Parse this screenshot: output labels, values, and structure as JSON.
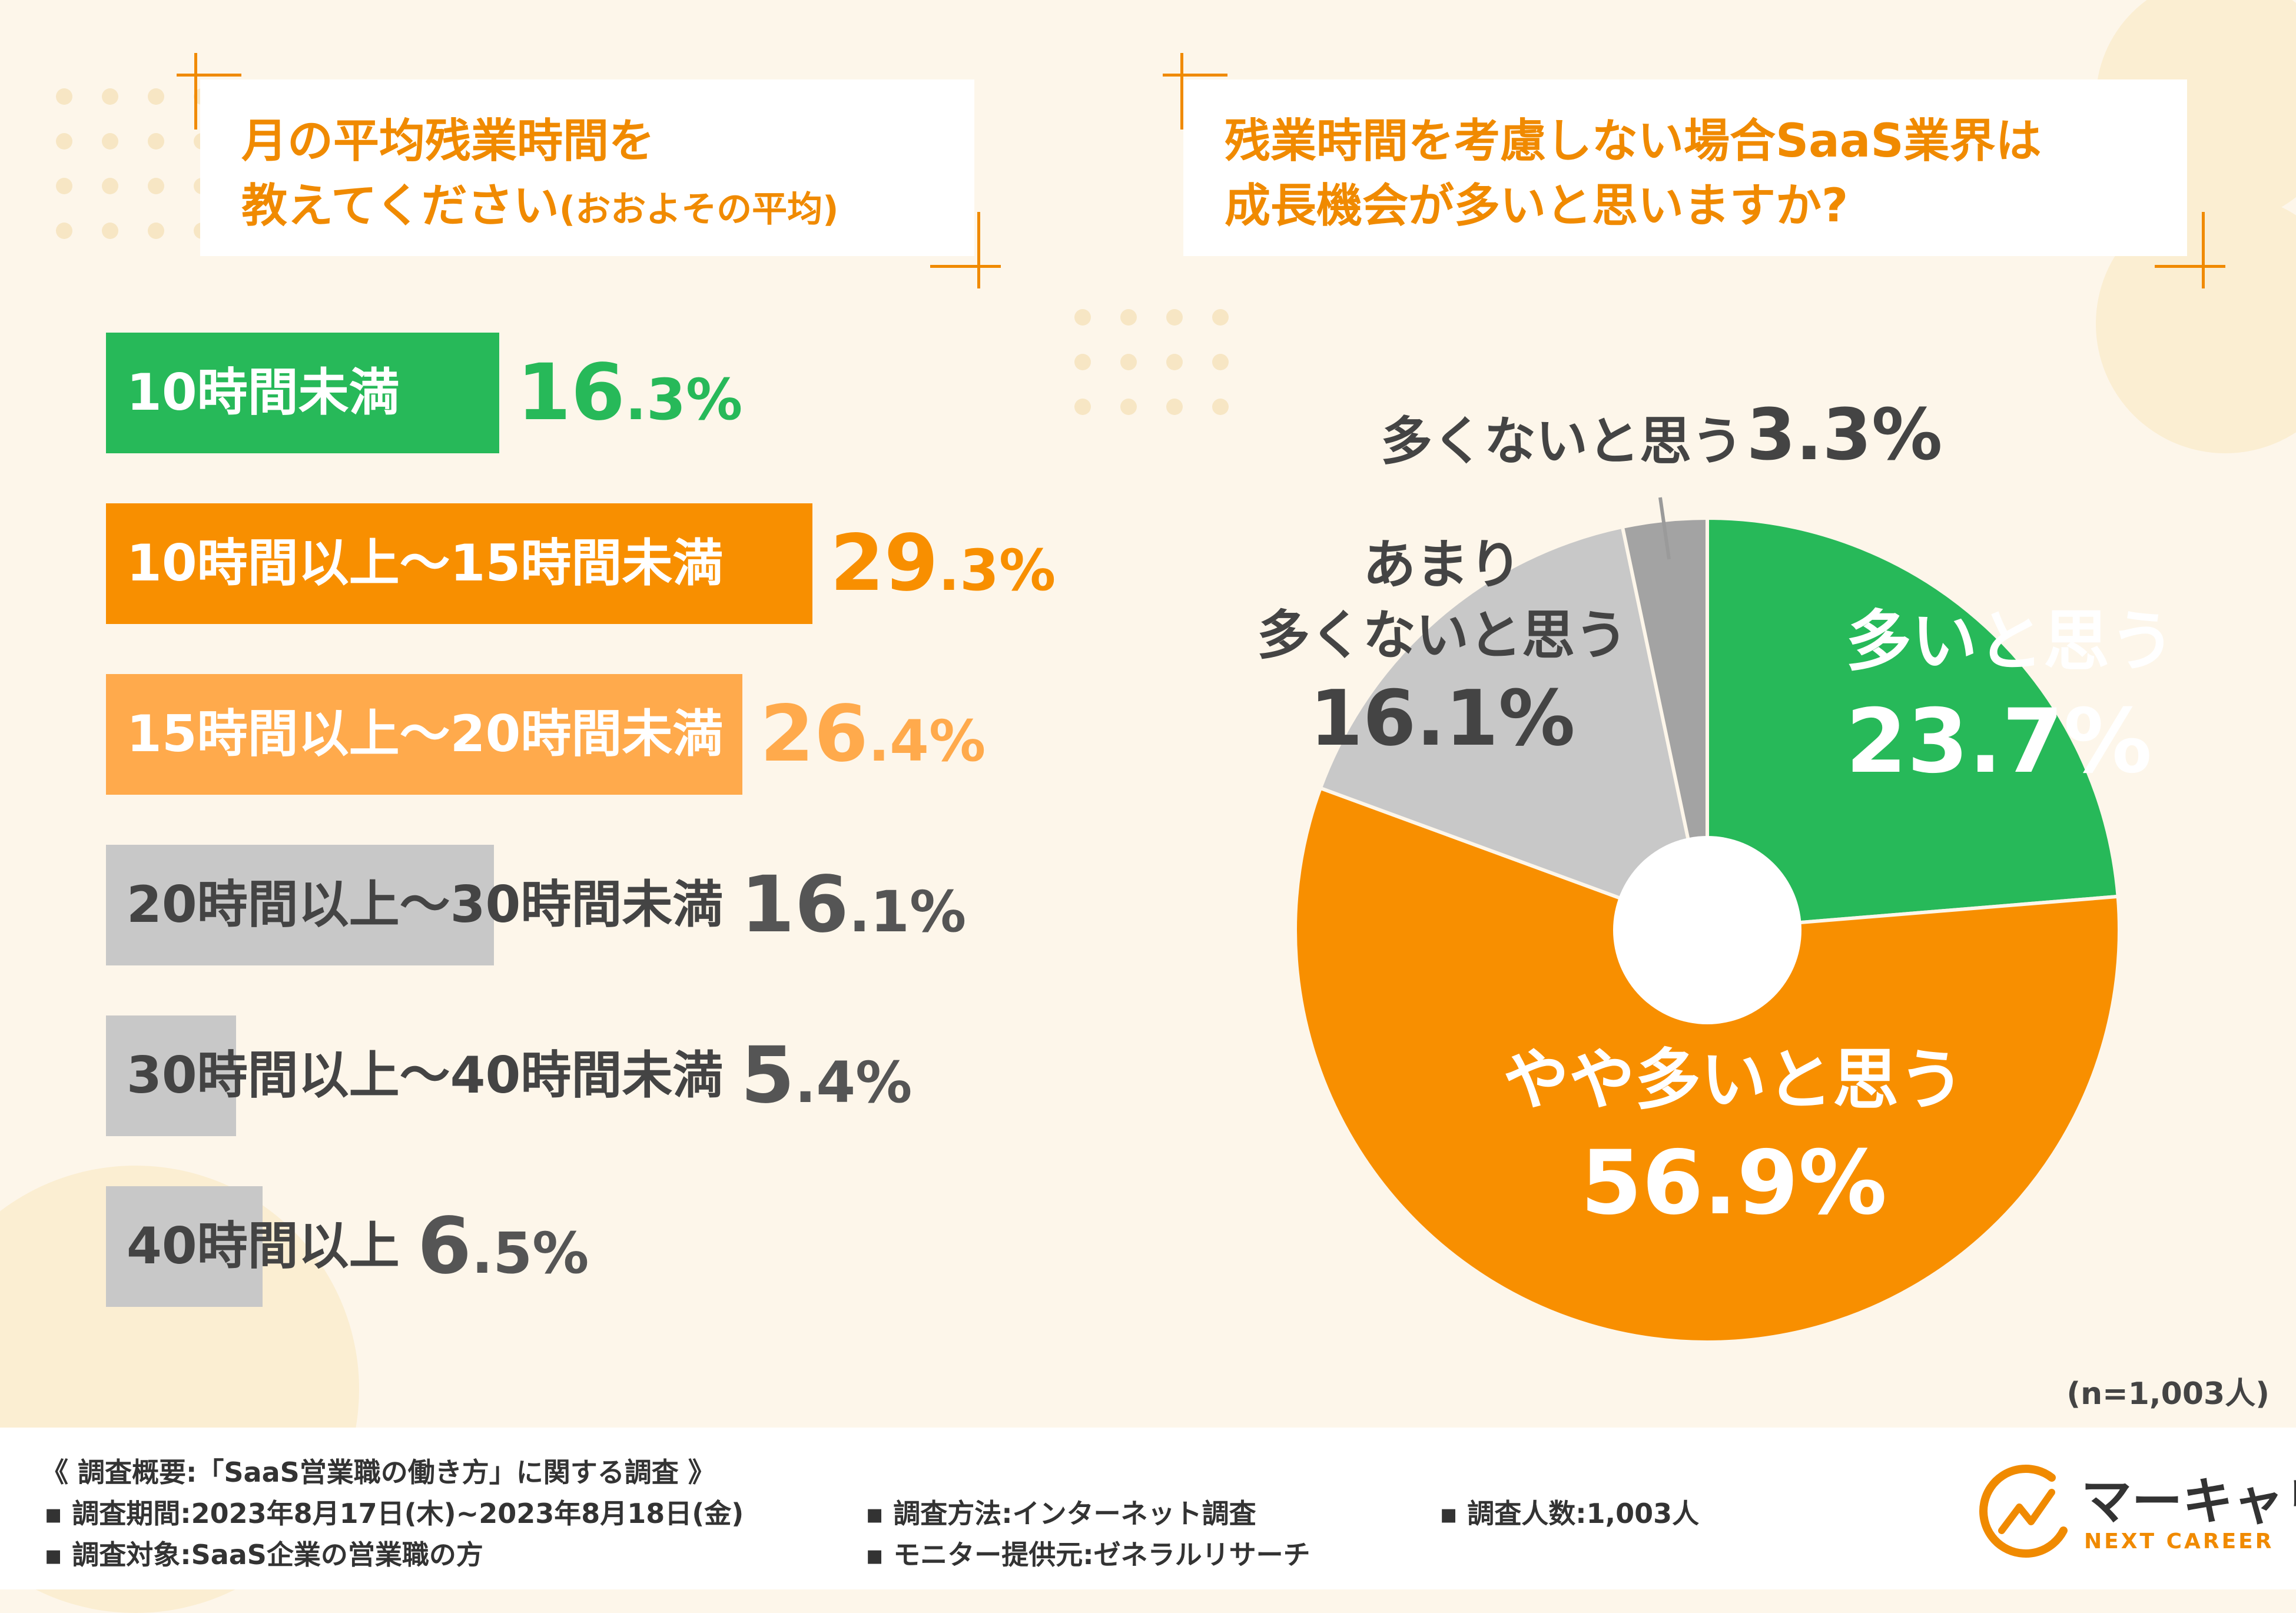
{
  "left_question": {
    "line1": "月の平均残業時間を",
    "line2_main": "教えてください",
    "line2_note": "(おおよその平均)"
  },
  "right_question": {
    "line1": "残業時間を考慮しない場合SaaS業界は",
    "line2": "成長機会が多いと思いますか?"
  },
  "chart_data": [
    {
      "type": "bar",
      "orientation": "horizontal",
      "title": "月の平均残業時間を教えてください(おおよその平均)",
      "categories": [
        "10時間未満",
        "10時間以上〜15時間未満",
        "15時間以上〜20時間未満",
        "20時間以上〜30時間未満",
        "30時間以上〜40時間未満",
        "40時間以上"
      ],
      "values": [
        16.3,
        29.3,
        26.4,
        16.1,
        5.4,
        6.5
      ],
      "value_big": [
        "16",
        "29",
        "26",
        "16",
        "5",
        "6"
      ],
      "value_small": [
        ".3%",
        ".3%",
        ".4%",
        ".1%",
        ".4%",
        ".5%"
      ],
      "colors": [
        "#27b959",
        "#f88f00",
        "#ffaa4c",
        "#c8c8c8",
        "#c8c8c8",
        "#c8c8c8"
      ],
      "label_colors": [
        "#ffffff",
        "#ffffff",
        "#ffffff",
        "#444444",
        "#444444",
        "#444444"
      ],
      "value_colors": [
        "#27b959",
        "#f88f00",
        "#ffaa4c",
        "#555555",
        "#555555",
        "#555555"
      ]
    },
    {
      "type": "pie",
      "style": "donut",
      "title": "残業時間を考慮しない場合SaaS業界は成長機会が多いと思いますか?",
      "slices": [
        {
          "label": "多いと思う",
          "value": 23.7,
          "value_text": "23.7%",
          "color": "#27b959"
        },
        {
          "label": "やや多いと思う",
          "value": 56.9,
          "value_text": "56.9%",
          "color": "#f88f00"
        },
        {
          "label": "あまり多くないと思う",
          "label_line1": "あまり",
          "label_line2": "多くないと思う",
          "value": 16.1,
          "value_text": "16.1%",
          "color": "#c8c8c8"
        },
        {
          "label": "多くないと思う",
          "value": 3.3,
          "value_text": "3.3%",
          "color": "#a3a3a3"
        }
      ]
    }
  ],
  "sample_size": "(n=1,003人)",
  "footer": {
    "summary": "《 調査概要:「SaaS営業職の働き方」に関する調査 》",
    "period": "▪ 調査期間:2023年8月17日(木)~2023年8月18日(金)",
    "method": "▪ 調査方法:インターネット調査",
    "count": "▪ 調査人数:1,003人",
    "target": "▪ 調査対象:SaaS企業の営業職の方",
    "provider": "▪ モニター提供元:ゼネラルリサーチ"
  },
  "logo": {
    "name": "マーキャリ",
    "sub": "NEXT CAREER"
  },
  "colors": {
    "accent": "#f08a00",
    "green": "#27b959",
    "orange": "#f88f00",
    "light_orange": "#ffaa4c",
    "gray": "#c8c8c8",
    "background": "#fdf6ea"
  }
}
